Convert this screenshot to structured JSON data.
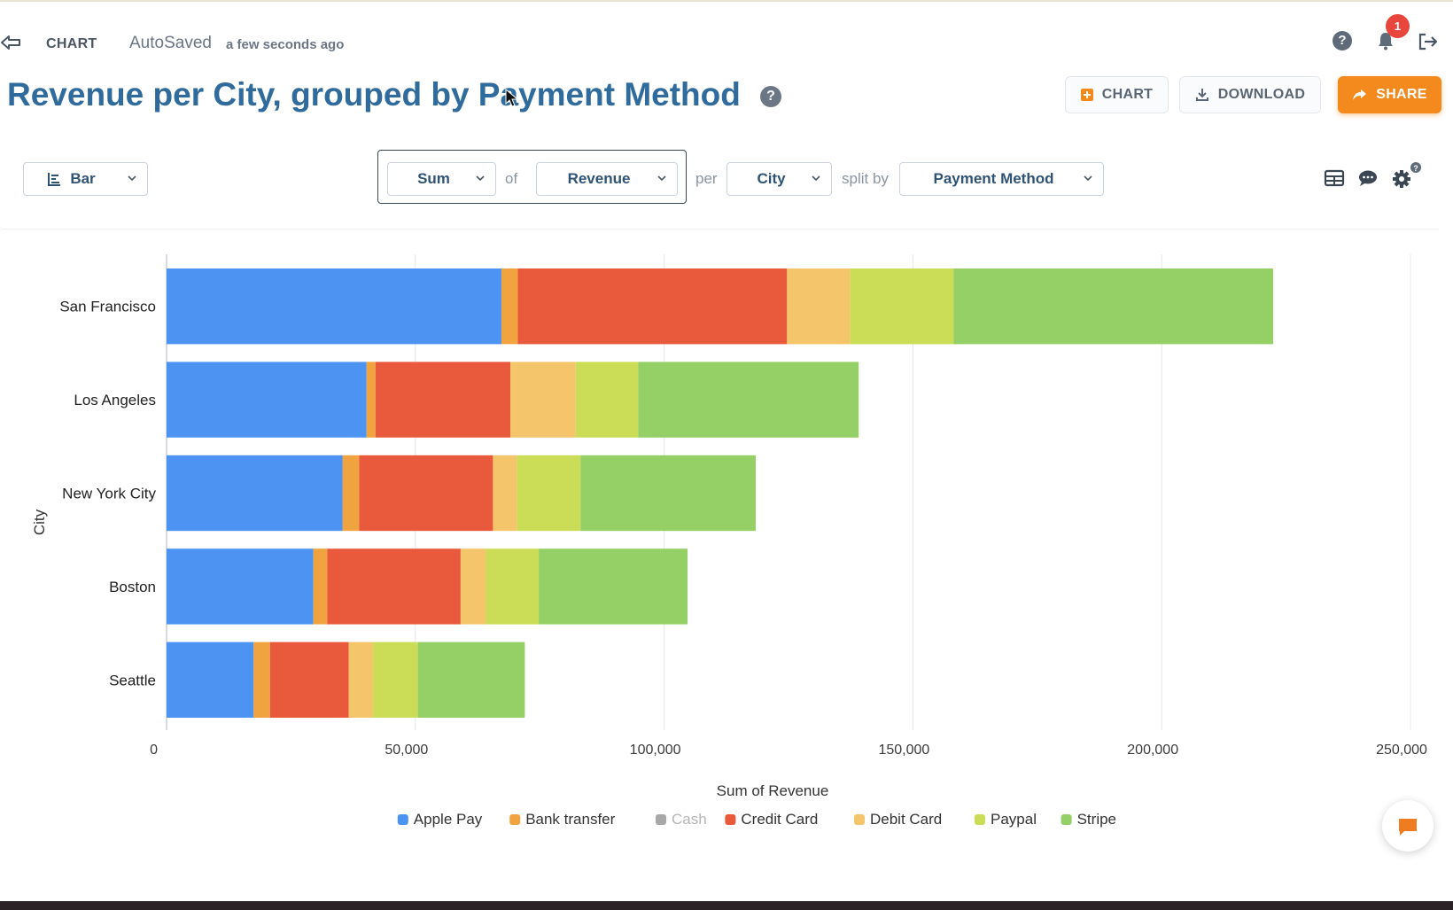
{
  "topbar": {
    "crumb": "CHART",
    "autosaved": "AutoSaved",
    "autosaved_time": "a few seconds ago",
    "notification_count": "1"
  },
  "header": {
    "title": "Revenue per City, grouped by Payment Method",
    "help_glyph": "?",
    "chart_button": "CHART",
    "download_button": "DOWNLOAD",
    "share_button": "SHARE"
  },
  "toolbar": {
    "chart_type": "Bar",
    "aggregation": "Sum",
    "of_word": "of",
    "measure": "Revenue",
    "per_word": "per",
    "dimension": "City",
    "split_word": "split by",
    "split_dimension": "Payment Method"
  },
  "colors": {
    "title": "#2f6b9c",
    "accent": "#f48a1e",
    "notification": "#e8453c"
  },
  "icons": [
    "back-arrow-icon",
    "help-icon",
    "bell-icon",
    "logout-icon",
    "bar-chart-icon",
    "chevron-down-icon",
    "table-icon",
    "comment-icon",
    "gear-icon",
    "download-icon",
    "share-icon",
    "chat-icon"
  ],
  "chart_data": {
    "type": "bar",
    "orientation": "horizontal",
    "stacked": true,
    "categories": [
      "San Francisco",
      "Los Angeles",
      "New York City",
      "Boston",
      "Seattle"
    ],
    "series": [
      {
        "name": "Apple Pay",
        "color": "#4d93f2",
        "values": [
          67300,
          40200,
          35400,
          29500,
          17500
        ]
      },
      {
        "name": "Bank transfer",
        "color": "#f0a33e",
        "values": [
          3300,
          1800,
          3300,
          2800,
          3300
        ]
      },
      {
        "name": "Cash",
        "color": "#a8a8a8",
        "values": [
          0,
          0,
          0,
          0,
          0
        ],
        "hidden": true
      },
      {
        "name": "Credit Card",
        "color": "#e85a3b",
        "values": [
          54100,
          27100,
          26900,
          26800,
          15800
        ]
      },
      {
        "name": "Debit Card",
        "color": "#f5c56b",
        "values": [
          12700,
          13100,
          4800,
          5100,
          4900
        ]
      },
      {
        "name": "Paypal",
        "color": "#cbdd57",
        "values": [
          20800,
          12600,
          12800,
          10600,
          9000
        ]
      },
      {
        "name": "Stripe",
        "color": "#94d065",
        "values": [
          64200,
          44300,
          35200,
          29900,
          21500
        ]
      }
    ],
    "xlabel": "Sum of Revenue",
    "ylabel": "City",
    "xlim": [
      0,
      250000
    ],
    "x_ticks": [
      "0",
      "50,000",
      "100,000",
      "150,000",
      "200,000",
      "250,000"
    ],
    "grid": "vertical",
    "legend": "bottom-center"
  }
}
